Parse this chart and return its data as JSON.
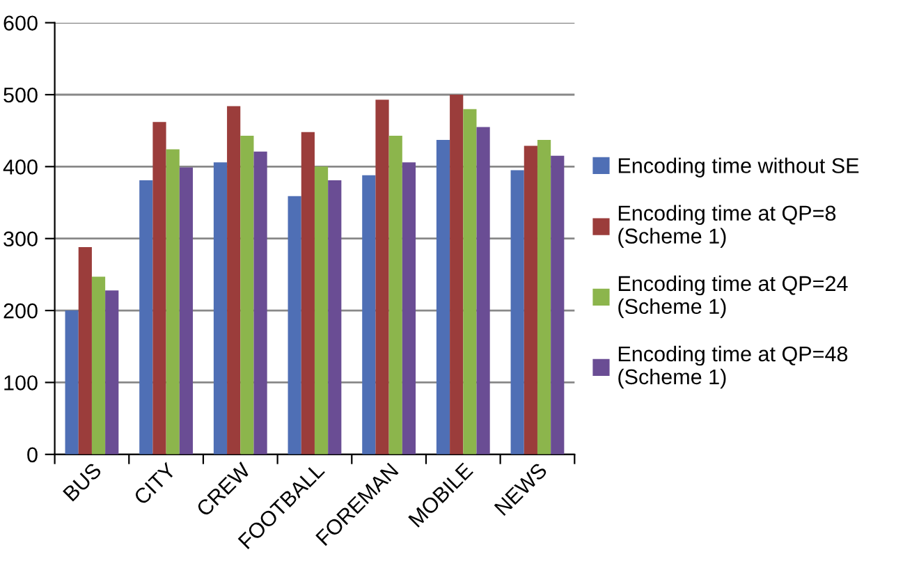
{
  "chart_data": {
    "type": "bar",
    "categories": [
      "BUS",
      "CITY",
      "CREW",
      "FOOTBALL",
      "FOREMAN",
      "MOBILE",
      "NEWS"
    ],
    "series": [
      {
        "name": "Encoding time without SE",
        "color": "#4f6fb5",
        "values": [
          200,
          381,
          406,
          359,
          388,
          437,
          395
        ]
      },
      {
        "name": "Encoding time at QP=8\n(Scheme 1)",
        "color": "#9b3d3b",
        "values": [
          288,
          462,
          484,
          448,
          493,
          500,
          429
        ]
      },
      {
        "name": "Encoding time at QP=24\n(Scheme 1)",
        "color": "#8cb54c",
        "values": [
          247,
          424,
          443,
          400,
          443,
          480,
          437
        ]
      },
      {
        "name": "Encoding time at QP=48\n(Scheme 1)",
        "color": "#6a4d94",
        "values": [
          228,
          399,
          421,
          381,
          406,
          455,
          415
        ]
      }
    ],
    "ylim": [
      0,
      600
    ],
    "yticks": [
      0,
      100,
      200,
      300,
      400,
      500,
      600
    ],
    "grid": "y",
    "legend": "right"
  }
}
